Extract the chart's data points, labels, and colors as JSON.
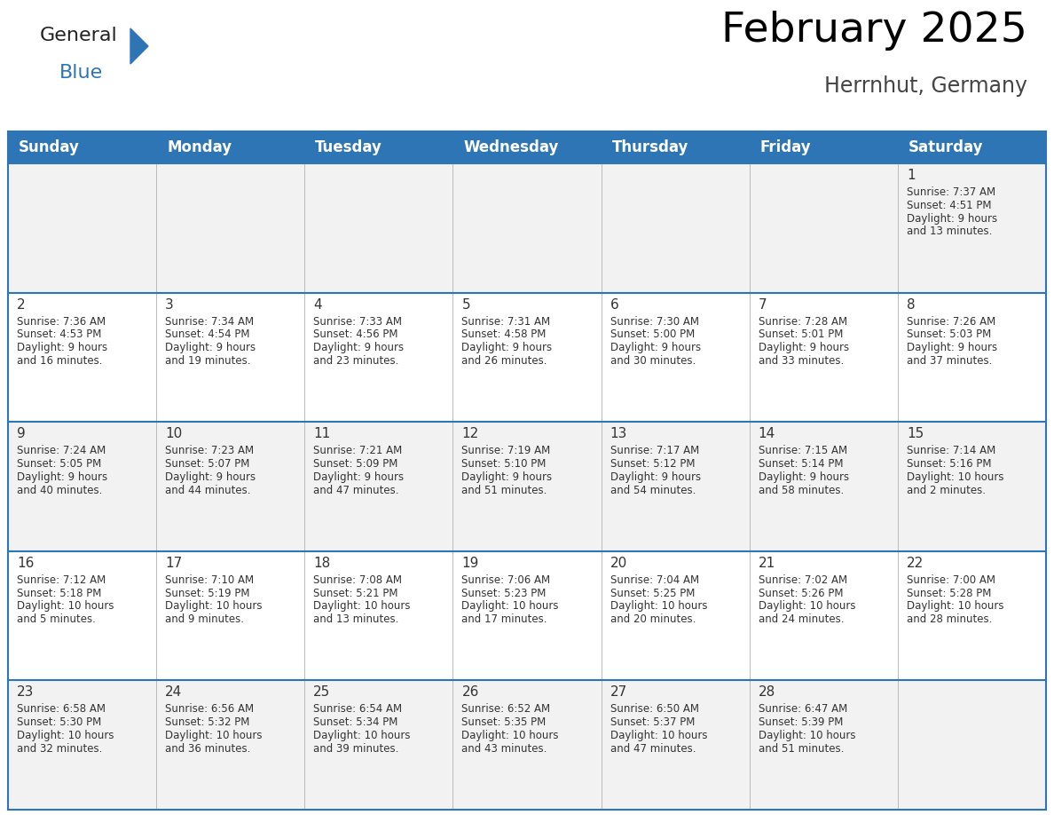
{
  "title": "February 2025",
  "subtitle": "Herrnhut, Germany",
  "header_bg": "#2E75B6",
  "header_text_color": "#FFFFFF",
  "cell_bg_odd": "#F2F2F2",
  "cell_bg_even": "#FFFFFF",
  "border_color": "#2E75B6",
  "sep_color": "#BBBBBB",
  "text_color": "#333333",
  "day_names": [
    "Sunday",
    "Monday",
    "Tuesday",
    "Wednesday",
    "Thursday",
    "Friday",
    "Saturday"
  ],
  "title_fontsize": 34,
  "subtitle_fontsize": 17,
  "header_fontsize": 12,
  "day_num_fontsize": 11,
  "cell_fontsize": 8.5,
  "logo_general_color": "#222222",
  "logo_blue_color": "#2E75B6",
  "weeks": [
    [
      {
        "day": null,
        "sunrise": null,
        "sunset": null,
        "daylight": null
      },
      {
        "day": null,
        "sunrise": null,
        "sunset": null,
        "daylight": null
      },
      {
        "day": null,
        "sunrise": null,
        "sunset": null,
        "daylight": null
      },
      {
        "day": null,
        "sunrise": null,
        "sunset": null,
        "daylight": null
      },
      {
        "day": null,
        "sunrise": null,
        "sunset": null,
        "daylight": null
      },
      {
        "day": null,
        "sunrise": null,
        "sunset": null,
        "daylight": null
      },
      {
        "day": 1,
        "sunrise": "7:37 AM",
        "sunset": "4:51 PM",
        "daylight": "9 hours and 13 minutes."
      }
    ],
    [
      {
        "day": 2,
        "sunrise": "7:36 AM",
        "sunset": "4:53 PM",
        "daylight": "9 hours and 16 minutes."
      },
      {
        "day": 3,
        "sunrise": "7:34 AM",
        "sunset": "4:54 PM",
        "daylight": "9 hours and 19 minutes."
      },
      {
        "day": 4,
        "sunrise": "7:33 AM",
        "sunset": "4:56 PM",
        "daylight": "9 hours and 23 minutes."
      },
      {
        "day": 5,
        "sunrise": "7:31 AM",
        "sunset": "4:58 PM",
        "daylight": "9 hours and 26 minutes."
      },
      {
        "day": 6,
        "sunrise": "7:30 AM",
        "sunset": "5:00 PM",
        "daylight": "9 hours and 30 minutes."
      },
      {
        "day": 7,
        "sunrise": "7:28 AM",
        "sunset": "5:01 PM",
        "daylight": "9 hours and 33 minutes."
      },
      {
        "day": 8,
        "sunrise": "7:26 AM",
        "sunset": "5:03 PM",
        "daylight": "9 hours and 37 minutes."
      }
    ],
    [
      {
        "day": 9,
        "sunrise": "7:24 AM",
        "sunset": "5:05 PM",
        "daylight": "9 hours and 40 minutes."
      },
      {
        "day": 10,
        "sunrise": "7:23 AM",
        "sunset": "5:07 PM",
        "daylight": "9 hours and 44 minutes."
      },
      {
        "day": 11,
        "sunrise": "7:21 AM",
        "sunset": "5:09 PM",
        "daylight": "9 hours and 47 minutes."
      },
      {
        "day": 12,
        "sunrise": "7:19 AM",
        "sunset": "5:10 PM",
        "daylight": "9 hours and 51 minutes."
      },
      {
        "day": 13,
        "sunrise": "7:17 AM",
        "sunset": "5:12 PM",
        "daylight": "9 hours and 54 minutes."
      },
      {
        "day": 14,
        "sunrise": "7:15 AM",
        "sunset": "5:14 PM",
        "daylight": "9 hours and 58 minutes."
      },
      {
        "day": 15,
        "sunrise": "7:14 AM",
        "sunset": "5:16 PM",
        "daylight": "10 hours and 2 minutes."
      }
    ],
    [
      {
        "day": 16,
        "sunrise": "7:12 AM",
        "sunset": "5:18 PM",
        "daylight": "10 hours and 5 minutes."
      },
      {
        "day": 17,
        "sunrise": "7:10 AM",
        "sunset": "5:19 PM",
        "daylight": "10 hours and 9 minutes."
      },
      {
        "day": 18,
        "sunrise": "7:08 AM",
        "sunset": "5:21 PM",
        "daylight": "10 hours and 13 minutes."
      },
      {
        "day": 19,
        "sunrise": "7:06 AM",
        "sunset": "5:23 PM",
        "daylight": "10 hours and 17 minutes."
      },
      {
        "day": 20,
        "sunrise": "7:04 AM",
        "sunset": "5:25 PM",
        "daylight": "10 hours and 20 minutes."
      },
      {
        "day": 21,
        "sunrise": "7:02 AM",
        "sunset": "5:26 PM",
        "daylight": "10 hours and 24 minutes."
      },
      {
        "day": 22,
        "sunrise": "7:00 AM",
        "sunset": "5:28 PM",
        "daylight": "10 hours and 28 minutes."
      }
    ],
    [
      {
        "day": 23,
        "sunrise": "6:58 AM",
        "sunset": "5:30 PM",
        "daylight": "10 hours and 32 minutes."
      },
      {
        "day": 24,
        "sunrise": "6:56 AM",
        "sunset": "5:32 PM",
        "daylight": "10 hours and 36 minutes."
      },
      {
        "day": 25,
        "sunrise": "6:54 AM",
        "sunset": "5:34 PM",
        "daylight": "10 hours and 39 minutes."
      },
      {
        "day": 26,
        "sunrise": "6:52 AM",
        "sunset": "5:35 PM",
        "daylight": "10 hours and 43 minutes."
      },
      {
        "day": 27,
        "sunrise": "6:50 AM",
        "sunset": "5:37 PM",
        "daylight": "10 hours and 47 minutes."
      },
      {
        "day": 28,
        "sunrise": "6:47 AM",
        "sunset": "5:39 PM",
        "daylight": "10 hours and 51 minutes."
      },
      {
        "day": null,
        "sunrise": null,
        "sunset": null,
        "daylight": null
      }
    ]
  ]
}
